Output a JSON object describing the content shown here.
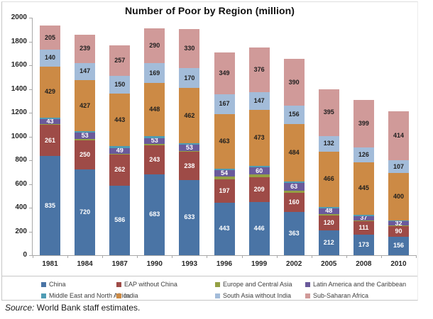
{
  "title": "Number of Poor by Region (million)",
  "source": {
    "label": "Source:",
    "text": "World Bank staff estimates."
  },
  "chart_data": {
    "type": "bar",
    "stacked": true,
    "title": "Number of Poor by Region (million)",
    "xlabel": "",
    "ylabel": "",
    "ylim": [
      0,
      2000
    ],
    "ytick_step": 200,
    "ytick_labels": [
      "0",
      "200",
      "400",
      "600",
      "800",
      "1000",
      "1200",
      "1400",
      "1600",
      "1800",
      "2000"
    ],
    "grid": false,
    "legend_position": "bottom",
    "categories": [
      "1981",
      "1984",
      "1987",
      "1990",
      "1993",
      "1996",
      "1999",
      "2002",
      "2005",
      "2008",
      "2010"
    ],
    "series": [
      {
        "name": "China",
        "color": "#4a74a5",
        "label_color": "#ffffff",
        "labels_shown": true,
        "values": [
          835,
          720,
          586,
          683,
          633,
          443,
          446,
          363,
          212,
          173,
          156
        ]
      },
      {
        "name": "EAP without China",
        "color": "#9e4b47",
        "label_color": "#ffffff",
        "labels_shown": true,
        "values": [
          261,
          250,
          262,
          243,
          238,
          197,
          209,
          160,
          120,
          111,
          90
        ]
      },
      {
        "name": "Europe and Central Asia",
        "color": "#94a044",
        "label_color": "#ffffff",
        "labels_shown": false,
        "estimated": true,
        "values": [
          8,
          7,
          6,
          9,
          9,
          21,
          24,
          22,
          16,
          9,
          6
        ]
      },
      {
        "name": "Latin America and the Caribbean",
        "color": "#6a5a9b",
        "label_color": "#ffffff",
        "labels_shown": true,
        "values": [
          43,
          53,
          49,
          53,
          53,
          54,
          60,
          63,
          48,
          37,
          32
        ]
      },
      {
        "name": "Middle East and North Africa",
        "color": "#4f9cb4",
        "label_color": "#ffffff",
        "labels_shown": false,
        "estimated": true,
        "values": [
          14,
          16,
          15,
          13,
          12,
          12,
          14,
          13,
          10,
          9,
          8
        ]
      },
      {
        "name": "India",
        "color": "#cc8a45",
        "label_color": "#1f1f1f",
        "labels_shown": true,
        "values": [
          429,
          427,
          443,
          448,
          462,
          463,
          473,
          484,
          466,
          445,
          400
        ]
      },
      {
        "name": "South Asia without India",
        "color": "#a3bcd9",
        "label_color": "#1f1f1f",
        "labels_shown": true,
        "values": [
          140,
          147,
          150,
          169,
          170,
          167,
          147,
          156,
          132,
          126,
          107
        ]
      },
      {
        "name": "Sub-Saharan Africa",
        "color": "#d09a99",
        "label_color": "#1f1f1f",
        "labels_shown": true,
        "values": [
          205,
          239,
          257,
          290,
          330,
          349,
          376,
          390,
          395,
          399,
          414
        ]
      }
    ],
    "legend_columns_x": [
      55,
      161,
      300,
      427
    ],
    "legend_rows_y": [
      393,
      409
    ]
  }
}
